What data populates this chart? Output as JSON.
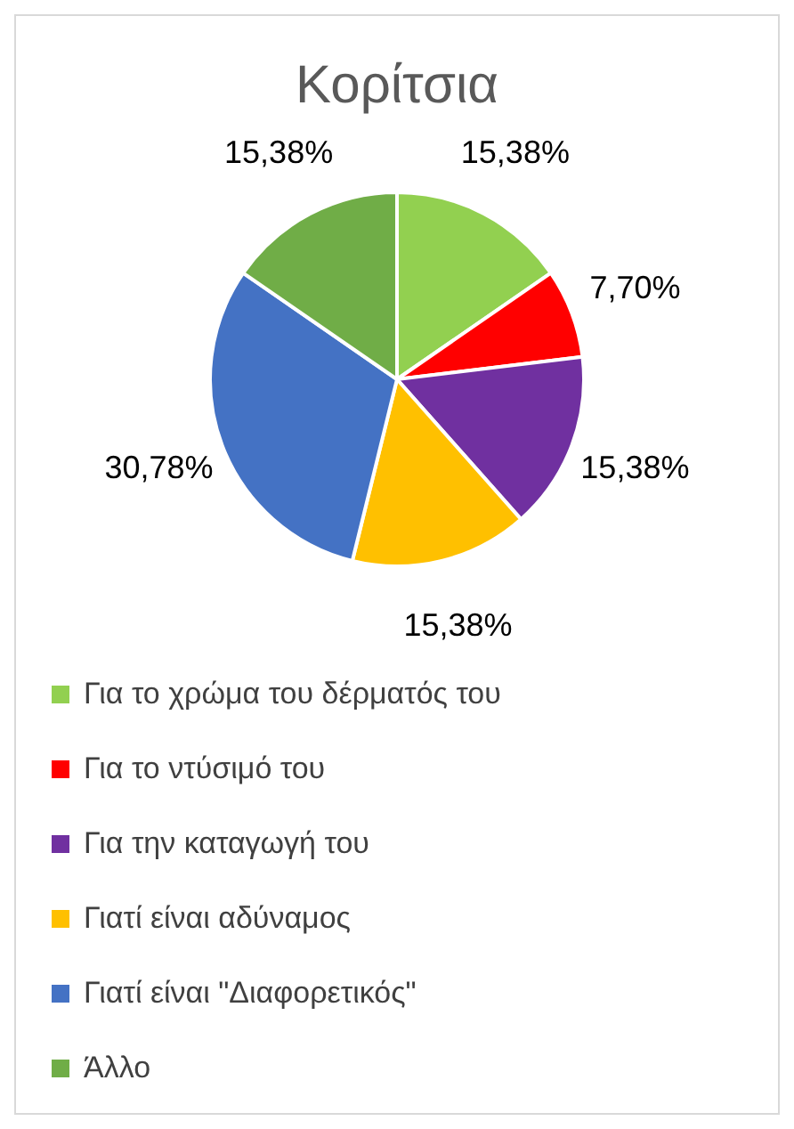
{
  "chart_data": {
    "type": "pie",
    "title": "Κορίτσια",
    "categories": [
      "Για το χρώμα του δέρματός του",
      "Για το ντύσιμό του",
      "Για την καταγωγή του",
      "Γιατί είναι αδύναμος",
      "Γιατί είναι \"Διαφορετικός\"",
      "Άλλο"
    ],
    "values": [
      15.38,
      7.7,
      15.38,
      15.38,
      30.78,
      15.38
    ],
    "colors": [
      "#92d050",
      "#ff0000",
      "#7030a0",
      "#ffc000",
      "#4472c4",
      "#70ad47"
    ],
    "value_labels": [
      "15,38%",
      "7,70%",
      "15,38%",
      "15,38%",
      "30,78%",
      "15,38%"
    ],
    "legend": "bottom"
  }
}
